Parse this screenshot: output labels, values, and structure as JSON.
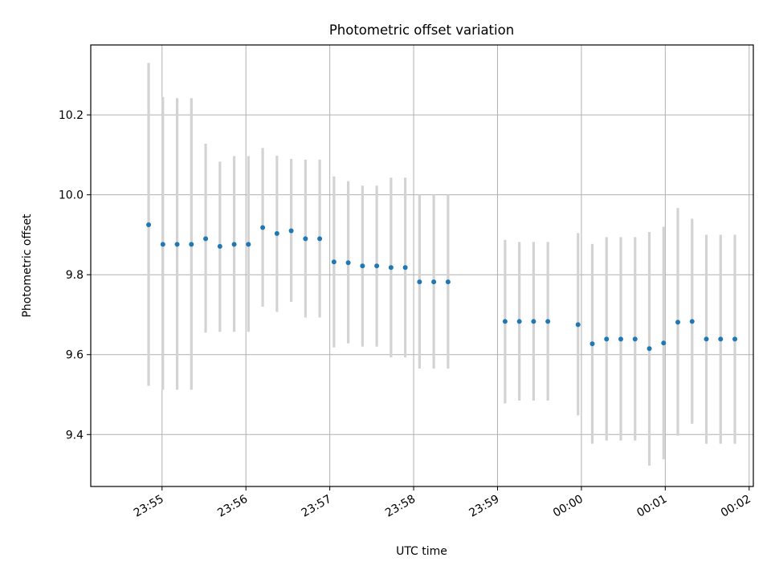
{
  "chart_data": {
    "type": "scatter",
    "title": "Photometric offset variation",
    "xlabel": "UTC time",
    "ylabel": "Photometric offset",
    "grid": true,
    "xlim_minutes": [
      -0.85,
      7.05
    ],
    "ylim": [
      9.27,
      10.375
    ],
    "x_ticks": [
      {
        "label": "23:55",
        "minute": 0
      },
      {
        "label": "23:56",
        "minute": 1
      },
      {
        "label": "23:57",
        "minute": 2
      },
      {
        "label": "23:58",
        "minute": 3
      },
      {
        "label": "23:59",
        "minute": 4
      },
      {
        "label": "00:00",
        "minute": 5
      },
      {
        "label": "00:01",
        "minute": 6
      },
      {
        "label": "00:02",
        "minute": 7
      }
    ],
    "y_ticks": [
      "9.4",
      "9.6",
      "9.8",
      "10.0",
      "10.2"
    ],
    "colors": {
      "point": "#1f77b4",
      "errorbar": "#d3d3d3",
      "grid": "#b0b0b0"
    },
    "series": [
      {
        "points": [
          {
            "x": -0.16,
            "y": 9.925,
            "err_low": 9.522,
            "err_high": 10.33
          },
          {
            "x": 0.01,
            "y": 9.876,
            "err_low": 9.512,
            "err_high": 10.245
          },
          {
            "x": 0.18,
            "y": 9.876,
            "err_low": 9.512,
            "err_high": 10.242
          },
          {
            "x": 0.35,
            "y": 9.876,
            "err_low": 9.512,
            "err_high": 10.242
          },
          {
            "x": 0.52,
            "y": 9.89,
            "err_low": 9.655,
            "err_high": 10.128
          },
          {
            "x": 0.69,
            "y": 9.871,
            "err_low": 9.657,
            "err_high": 10.083
          },
          {
            "x": 0.86,
            "y": 9.876,
            "err_low": 9.657,
            "err_high": 10.097
          },
          {
            "x": 1.03,
            "y": 9.876,
            "err_low": 9.657,
            "err_high": 10.097
          },
          {
            "x": 1.2,
            "y": 9.918,
            "err_low": 9.72,
            "err_high": 10.117
          },
          {
            "x": 1.37,
            "y": 9.903,
            "err_low": 9.707,
            "err_high": 10.098
          },
          {
            "x": 1.54,
            "y": 9.91,
            "err_low": 9.732,
            "err_high": 10.09
          },
          {
            "x": 1.71,
            "y": 9.89,
            "err_low": 9.693,
            "err_high": 10.088
          },
          {
            "x": 1.88,
            "y": 9.89,
            "err_low": 9.693,
            "err_high": 10.088
          },
          {
            "x": 2.05,
            "y": 9.832,
            "err_low": 9.618,
            "err_high": 10.046
          },
          {
            "x": 2.22,
            "y": 9.83,
            "err_low": 9.628,
            "err_high": 10.034
          },
          {
            "x": 2.39,
            "y": 9.822,
            "err_low": 9.62,
            "err_high": 10.023
          },
          {
            "x": 2.56,
            "y": 9.822,
            "err_low": 9.62,
            "err_high": 10.023
          },
          {
            "x": 2.73,
            "y": 9.818,
            "err_low": 9.593,
            "err_high": 10.043
          },
          {
            "x": 2.9,
            "y": 9.818,
            "err_low": 9.593,
            "err_high": 10.043
          },
          {
            "x": 3.07,
            "y": 9.782,
            "err_low": 9.565,
            "err_high": 10.0
          },
          {
            "x": 3.24,
            "y": 9.782,
            "err_low": 9.565,
            "err_high": 10.0
          },
          {
            "x": 3.41,
            "y": 9.782,
            "err_low": 9.565,
            "err_high": 10.0
          },
          {
            "x": 4.09,
            "y": 9.683,
            "err_low": 9.478,
            "err_high": 9.887
          },
          {
            "x": 4.26,
            "y": 9.683,
            "err_low": 9.485,
            "err_high": 9.882
          },
          {
            "x": 4.43,
            "y": 9.683,
            "err_low": 9.485,
            "err_high": 9.882
          },
          {
            "x": 4.6,
            "y": 9.683,
            "err_low": 9.485,
            "err_high": 9.882
          },
          {
            "x": 4.96,
            "y": 9.675,
            "err_low": 9.448,
            "err_high": 9.904
          },
          {
            "x": 5.13,
            "y": 9.627,
            "err_low": 9.377,
            "err_high": 9.877
          },
          {
            "x": 5.3,
            "y": 9.639,
            "err_low": 9.385,
            "err_high": 9.894
          },
          {
            "x": 5.47,
            "y": 9.639,
            "err_low": 9.385,
            "err_high": 9.894
          },
          {
            "x": 5.64,
            "y": 9.639,
            "err_low": 9.385,
            "err_high": 9.894
          },
          {
            "x": 5.81,
            "y": 9.615,
            "err_low": 9.322,
            "err_high": 9.907
          },
          {
            "x": 5.98,
            "y": 9.629,
            "err_low": 9.338,
            "err_high": 9.92
          },
          {
            "x": 6.15,
            "y": 9.681,
            "err_low": 9.397,
            "err_high": 9.967
          },
          {
            "x": 6.32,
            "y": 9.683,
            "err_low": 9.427,
            "err_high": 9.94
          },
          {
            "x": 6.49,
            "y": 9.639,
            "err_low": 9.377,
            "err_high": 9.9
          },
          {
            "x": 6.66,
            "y": 9.639,
            "err_low": 9.377,
            "err_high": 9.9
          },
          {
            "x": 6.83,
            "y": 9.639,
            "err_low": 9.377,
            "err_high": 9.9
          }
        ]
      }
    ]
  }
}
